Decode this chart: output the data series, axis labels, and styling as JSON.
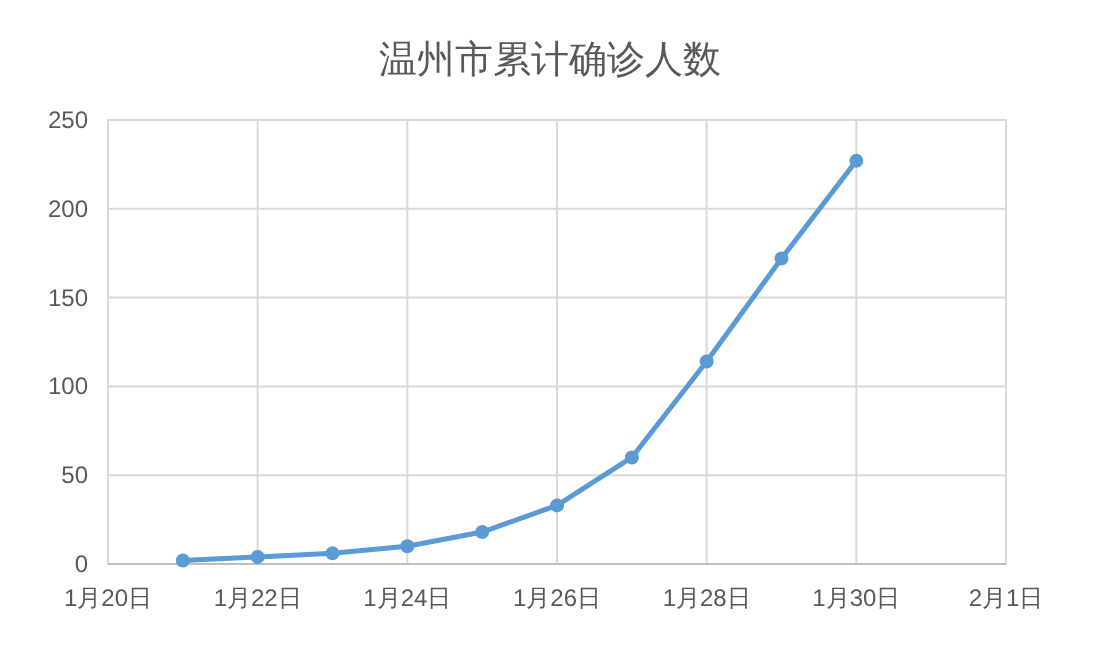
{
  "chart_data": {
    "type": "line",
    "title": "温州市累计确诊人数",
    "x": [
      "--01-21",
      "--01-22",
      "--01-23",
      "--01-24",
      "--01-25",
      "--01-26",
      "--01-27",
      "--01-28",
      "--01-29",
      "--01-30"
    ],
    "series": [
      {
        "color": "#5b9bd5",
        "values": [
          2,
          4,
          6,
          10,
          18,
          33,
          60,
          114,
          172,
          227
        ]
      }
    ],
    "xlim": [
      "--01-20",
      "--02-01"
    ],
    "xticks": [
      {
        "value": "--01-20",
        "label": "1月20日"
      },
      {
        "value": "--01-22",
        "label": "1月22日"
      },
      {
        "value": "--01-24",
        "label": "1月24日"
      },
      {
        "value": "--01-26",
        "label": "1月26日"
      },
      {
        "value": "--01-28",
        "label": "1月28日"
      },
      {
        "value": "--01-30",
        "label": "1月30日"
      },
      {
        "value": "--02-01",
        "label": "2月1日"
      }
    ],
    "ylim": [
      0,
      250
    ],
    "yticks": [
      0,
      50,
      100,
      150,
      200,
      250
    ],
    "grid": true,
    "marker": "circle",
    "line_style": "solid"
  }
}
